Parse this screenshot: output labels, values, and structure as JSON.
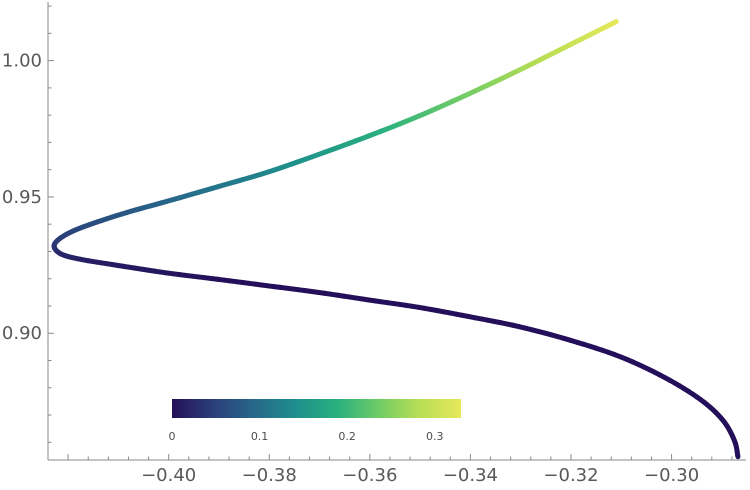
{
  "chart_data": {
    "type": "line",
    "title": "",
    "xlabel": "",
    "ylabel": "",
    "xlim": [
      -0.424,
      -0.2852
    ],
    "ylim": [
      0.8535,
      1.0215
    ],
    "grid": false,
    "x_ticks": [
      {
        "value": -0.4,
        "label": "−0.40"
      },
      {
        "value": -0.38,
        "label": "−0.38"
      },
      {
        "value": -0.36,
        "label": "−0.36"
      },
      {
        "value": -0.34,
        "label": "−0.34"
      },
      {
        "value": -0.32,
        "label": "−0.32"
      },
      {
        "value": -0.3,
        "label": "−0.30"
      }
    ],
    "y_ticks": [
      {
        "value": 0.9,
        "label": "0.90"
      },
      {
        "value": 0.95,
        "label": "0.95"
      },
      {
        "value": 1.0,
        "label": "1.00"
      }
    ],
    "series": [
      {
        "color_scale": "viridis",
        "points": [
          {
            "x": -0.2868,
            "y": 0.8547,
            "c": 0.0
          },
          {
            "x": -0.2875,
            "y": 0.8606,
            "c": 0.0
          },
          {
            "x": -0.2898,
            "y": 0.8681,
            "c": 0.0
          },
          {
            "x": -0.2942,
            "y": 0.8756,
            "c": 0.0
          },
          {
            "x": -0.3013,
            "y": 0.8837,
            "c": 0.0
          },
          {
            "x": -0.3101,
            "y": 0.8913,
            "c": 0.0
          },
          {
            "x": -0.3201,
            "y": 0.8974,
            "c": 0.0
          },
          {
            "x": -0.3303,
            "y": 0.9024,
            "c": 0.0
          },
          {
            "x": -0.3403,
            "y": 0.9061,
            "c": 0.0
          },
          {
            "x": -0.3503,
            "y": 0.9095,
            "c": 0.0
          },
          {
            "x": -0.3602,
            "y": 0.9122,
            "c": 0.0
          },
          {
            "x": -0.3703,
            "y": 0.915,
            "c": 0.0
          },
          {
            "x": -0.3803,
            "y": 0.9174,
            "c": 0.0
          },
          {
            "x": -0.3903,
            "y": 0.9198,
            "c": 0.0
          },
          {
            "x": -0.4003,
            "y": 0.9221,
            "c": 0.005
          },
          {
            "x": -0.4102,
            "y": 0.9249,
            "c": 0.01
          },
          {
            "x": -0.4175,
            "y": 0.9271,
            "c": 0.015
          },
          {
            "x": -0.4212,
            "y": 0.9289,
            "c": 0.02
          },
          {
            "x": -0.4227,
            "y": 0.9313,
            "c": 0.03
          },
          {
            "x": -0.4223,
            "y": 0.9337,
            "c": 0.04
          },
          {
            "x": -0.4199,
            "y": 0.9367,
            "c": 0.05
          },
          {
            "x": -0.4158,
            "y": 0.9398,
            "c": 0.06
          },
          {
            "x": -0.4083,
            "y": 0.9443,
            "c": 0.075
          },
          {
            "x": -0.4003,
            "y": 0.9484,
            "c": 0.09
          },
          {
            "x": -0.3903,
            "y": 0.9537,
            "c": 0.11
          },
          {
            "x": -0.3803,
            "y": 0.9591,
            "c": 0.13
          },
          {
            "x": -0.3703,
            "y": 0.9655,
            "c": 0.155
          },
          {
            "x": -0.3603,
            "y": 0.9723,
            "c": 0.18
          },
          {
            "x": -0.3502,
            "y": 0.9797,
            "c": 0.21
          },
          {
            "x": -0.3402,
            "y": 0.9879,
            "c": 0.24
          },
          {
            "x": -0.3302,
            "y": 0.9966,
            "c": 0.27
          },
          {
            "x": -0.3201,
            "y": 1.0059,
            "c": 0.3
          },
          {
            "x": -0.311,
            "y": 1.0143,
            "c": 0.33
          }
        ]
      }
    ],
    "colorbar": {
      "min": 0,
      "max": 0.33,
      "ticks": [
        {
          "value": 0,
          "label": "0"
        },
        {
          "value": 0.1,
          "label": "0.1"
        },
        {
          "value": 0.2,
          "label": "0.2"
        },
        {
          "value": 0.3,
          "label": "0.3"
        }
      ],
      "stops": [
        "#24105a",
        "#2b3f7a",
        "#27688a",
        "#1e8f8c",
        "#29b07f",
        "#6fcb66",
        "#b8de54",
        "#e6e85a"
      ]
    }
  }
}
